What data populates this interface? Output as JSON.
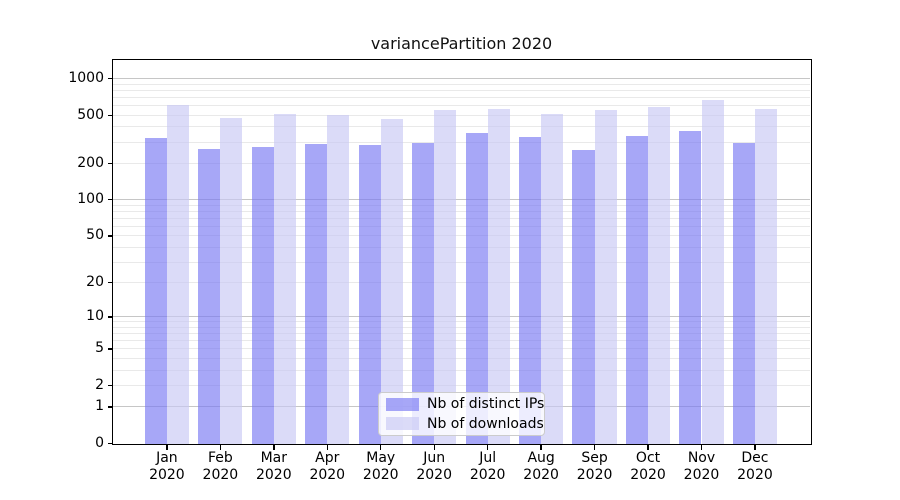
{
  "chart_data": {
    "type": "bar",
    "title": "variancePartition 2020",
    "categories": [
      "Jan 2020",
      "Feb 2020",
      "Mar 2020",
      "Apr 2020",
      "May 2020",
      "Jun 2020",
      "Jul 2020",
      "Aug 2020",
      "Sep 2020",
      "Oct 2020",
      "Nov 2020",
      "Dec 2020"
    ],
    "series": [
      {
        "name": "Nb of distinct IPs",
        "color": "rgba(120,120,242,0.65)",
        "values": [
          323,
          264,
          272,
          287,
          282,
          294,
          360,
          332,
          260,
          340,
          372,
          297
        ]
      },
      {
        "name": "Nb of downloads",
        "color": "rgba(199,199,244,0.65)",
        "values": [
          608,
          478,
          512,
          503,
          469,
          557,
          568,
          510,
          557,
          590,
          665,
          560
        ]
      }
    ],
    "yscale": "symlog (log1p)",
    "ylim": [
      0,
      1425
    ],
    "y_ticks": [
      0,
      1,
      2,
      5,
      10,
      20,
      50,
      100,
      200,
      500,
      1000
    ],
    "y_major_gridlines": [
      1,
      10,
      100,
      1000
    ],
    "y_minor_gridlines": [
      2,
      3,
      4,
      5,
      6,
      7,
      8,
      9,
      20,
      30,
      40,
      50,
      60,
      70,
      80,
      90,
      200,
      300,
      400,
      500,
      600,
      700,
      800,
      900
    ],
    "grid": true,
    "legend_position": "lower center",
    "colors": {
      "major_grid": "#c6c6c6",
      "minor_grid": "#e9e9e9",
      "spine": "#000000",
      "text": "#111111"
    }
  }
}
